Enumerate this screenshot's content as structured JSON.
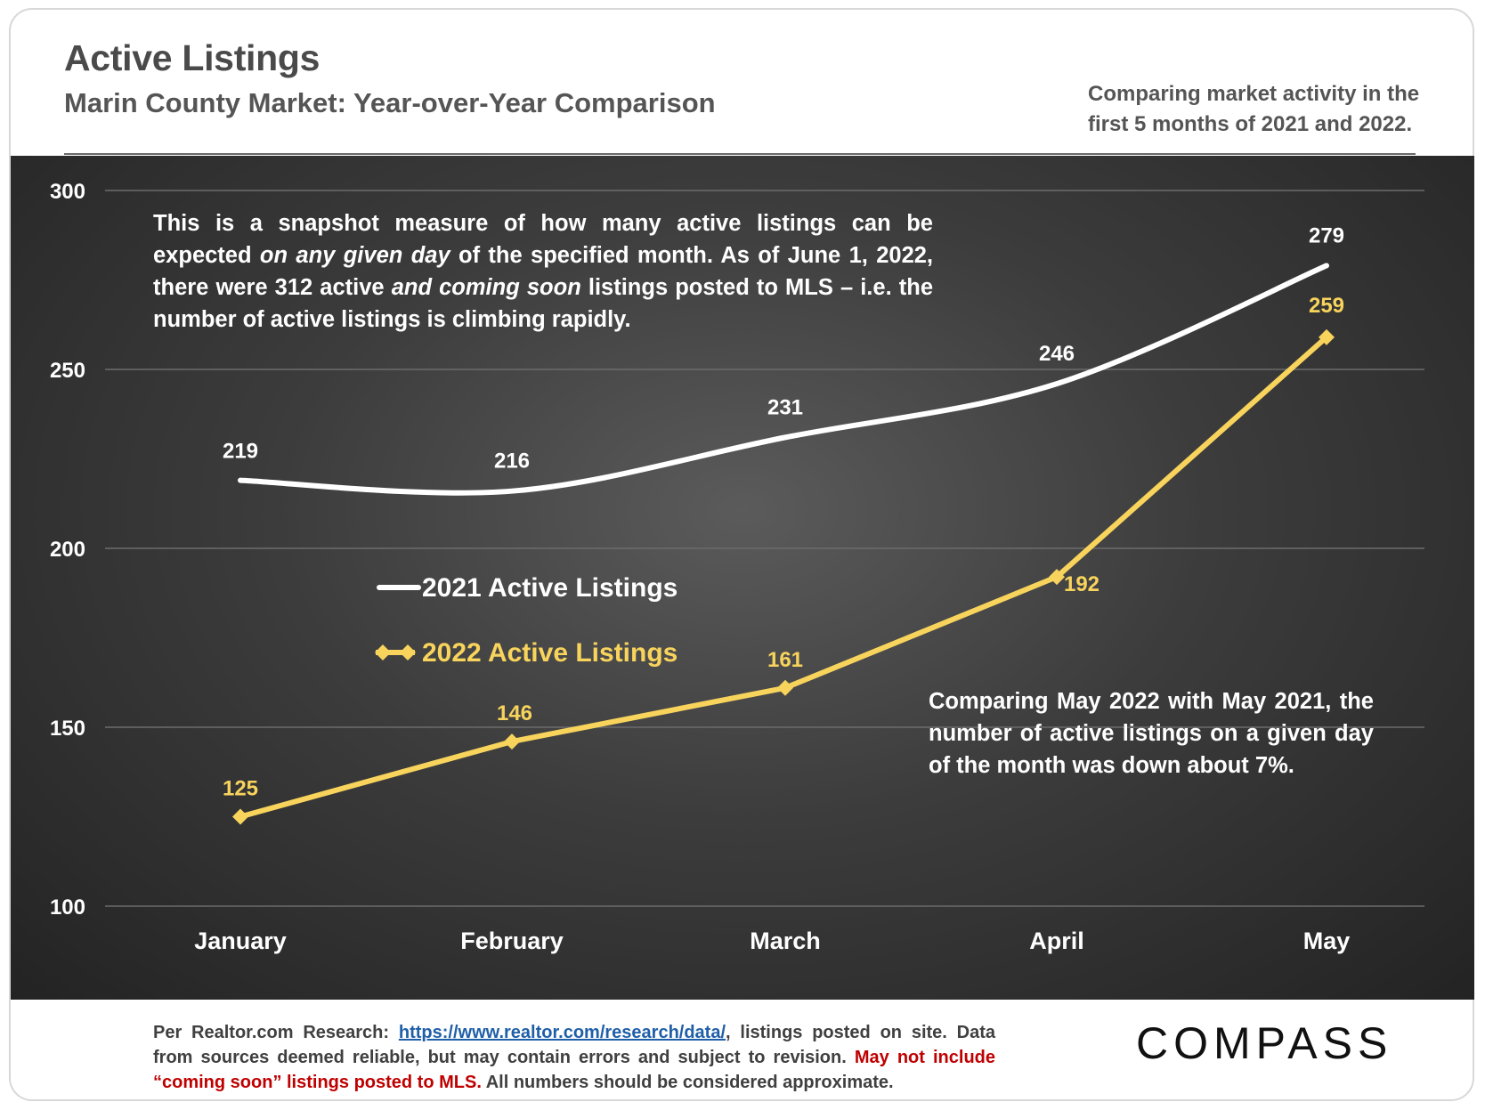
{
  "header": {
    "title": "Active Listings",
    "subtitle": "Marin County Market: Year-over-Year Comparison",
    "side_note": "Comparing market activity in the first 5 months of 2021 and 2022."
  },
  "notes": {
    "top_part1": "This is a snapshot measure of how many active listings can be expected ",
    "top_em1": "on any given day",
    "top_part2": " of the specified month. As of June 1, 2022, there were 312 active ",
    "top_em2": "and coming soon",
    "top_part3": " listings posted to MLS – i.e. the number of active listings is climbing rapidly.",
    "bottom": "Comparing May 2022 with May 2021, the number of active listings on a given day of the month was down about 7%."
  },
  "footer": {
    "prefix": "Per Realtor.com Research: ",
    "link": "https://www.realtor.com/research/data/",
    "after_link": ", listings posted on site. Data from sources deemed reliable, but may contain errors and subject to revision. ",
    "red": "May not include “coming soon” listings posted to MLS.",
    "suffix": " All numbers should be considered approximate."
  },
  "logo": "COMPASS",
  "colors": {
    "series_2021": "#ffffff",
    "series_2022": "#f8d45c",
    "grid": "#6c6c6c"
  },
  "chart_data": {
    "type": "line",
    "categories": [
      "January",
      "February",
      "March",
      "April",
      "May"
    ],
    "series": [
      {
        "name": "2021 Active Listings",
        "values": [
          219,
          216,
          231,
          246,
          279
        ],
        "color": "#ffffff",
        "smooth": true
      },
      {
        "name": "2022 Active Listings",
        "values": [
          125,
          146,
          161,
          192,
          259
        ],
        "color": "#f8d45c",
        "smooth": false,
        "marker": "diamond"
      }
    ],
    "yticks": [
      100,
      150,
      200,
      250,
      300
    ],
    "ylim": [
      100,
      300
    ],
    "grid": true,
    "legend": "center-left"
  }
}
